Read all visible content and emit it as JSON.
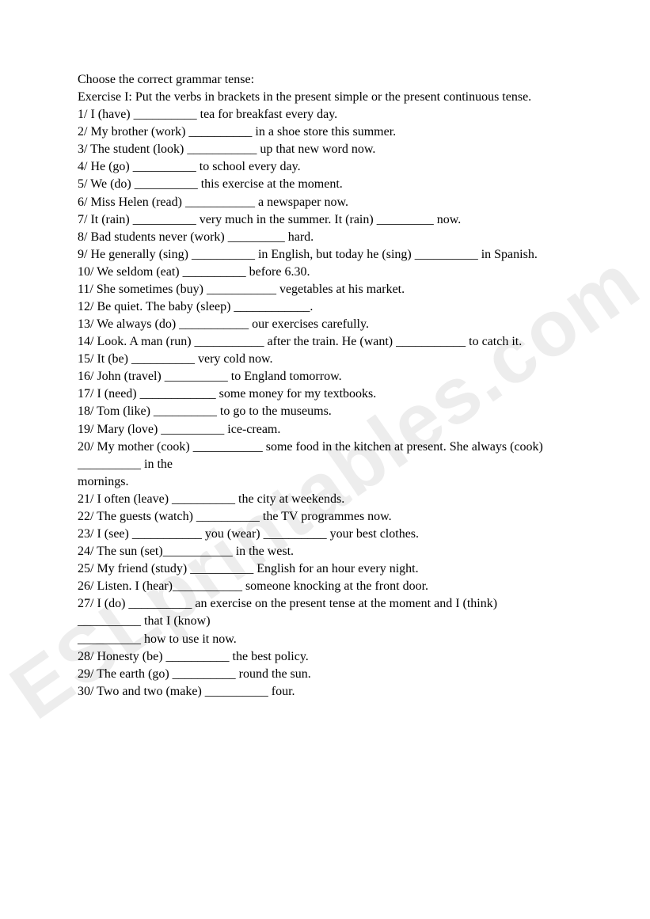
{
  "doc": {
    "watermark": "ESLprintables.com",
    "background_color": "#ffffff",
    "text_color": "#000000",
    "font_family": "Times New Roman",
    "font_size_pt": 12,
    "watermark_color": "rgba(0,0,0,0.07)",
    "watermark_font_family": "Arial",
    "watermark_font_weight": "bold",
    "watermark_rotation_deg": -35,
    "lines": [
      "Choose the correct grammar tense:",
      "Exercise I: Put the verbs in brackets in the present simple or the present continuous tense.",
      "1/ I (have) __________ tea for breakfast every day.",
      "2/ My brother (work) __________ in a shoe store this summer.",
      "3/ The student (look) ___________ up that new word now.",
      "4/ He (go) __________ to school every day.",
      "5/ We (do) __________ this exercise at the moment.",
      "6/ Miss Helen (read) ___________ a newspaper now.",
      "7/ It (rain) __________ very much in the summer. It (rain) _________ now.",
      "8/ Bad students never (work) _________ hard.",
      "9/ He generally (sing) __________ in English, but today he (sing) __________ in Spanish.",
      "10/ We seldom (eat) __________ before 6.30.",
      "11/ She sometimes (buy) ___________ vegetables at his market.",
      "12/ Be quiet. The baby (sleep) ____________.",
      "13/ We always (do) ___________ our exercises carefully.",
      "14/ Look. A man (run) ___________ after the train. He (want) ___________ to catch it.",
      "15/ It (be) __________ very cold now.",
      "16/ John (travel) __________ to England tomorrow.",
      "17/ I (need) ____________ some money for my textbooks.",
      "18/ Tom (like) __________ to go to the museums.",
      "19/ Mary (love) __________ ice-cream.",
      "20/ My mother (cook) ___________ some food in the kitchen at present. She always (cook)",
      "__________ in the",
      "mornings.",
      "21/ I often (leave) __________ the city at weekends.",
      "22/ The guests (watch) __________ the TV programmes now.",
      "23/ I (see) ___________ you (wear) __________ your best clothes.",
      "24/ The sun (set)___________ in the west.",
      "25/ My friend (study) __________ English for an hour every night.",
      "26/ Listen. I (hear)___________ someone knocking at the front door.",
      "27/ I (do) __________ an exercise on the present tense at the moment and I (think)",
      "__________ that I (know)",
      "__________ how to use it now.",
      "28/ Honesty (be) __________ the best policy.",
      "29/ The earth (go) __________ round the sun.",
      "30/ Two and two (make) __________ four."
    ]
  }
}
